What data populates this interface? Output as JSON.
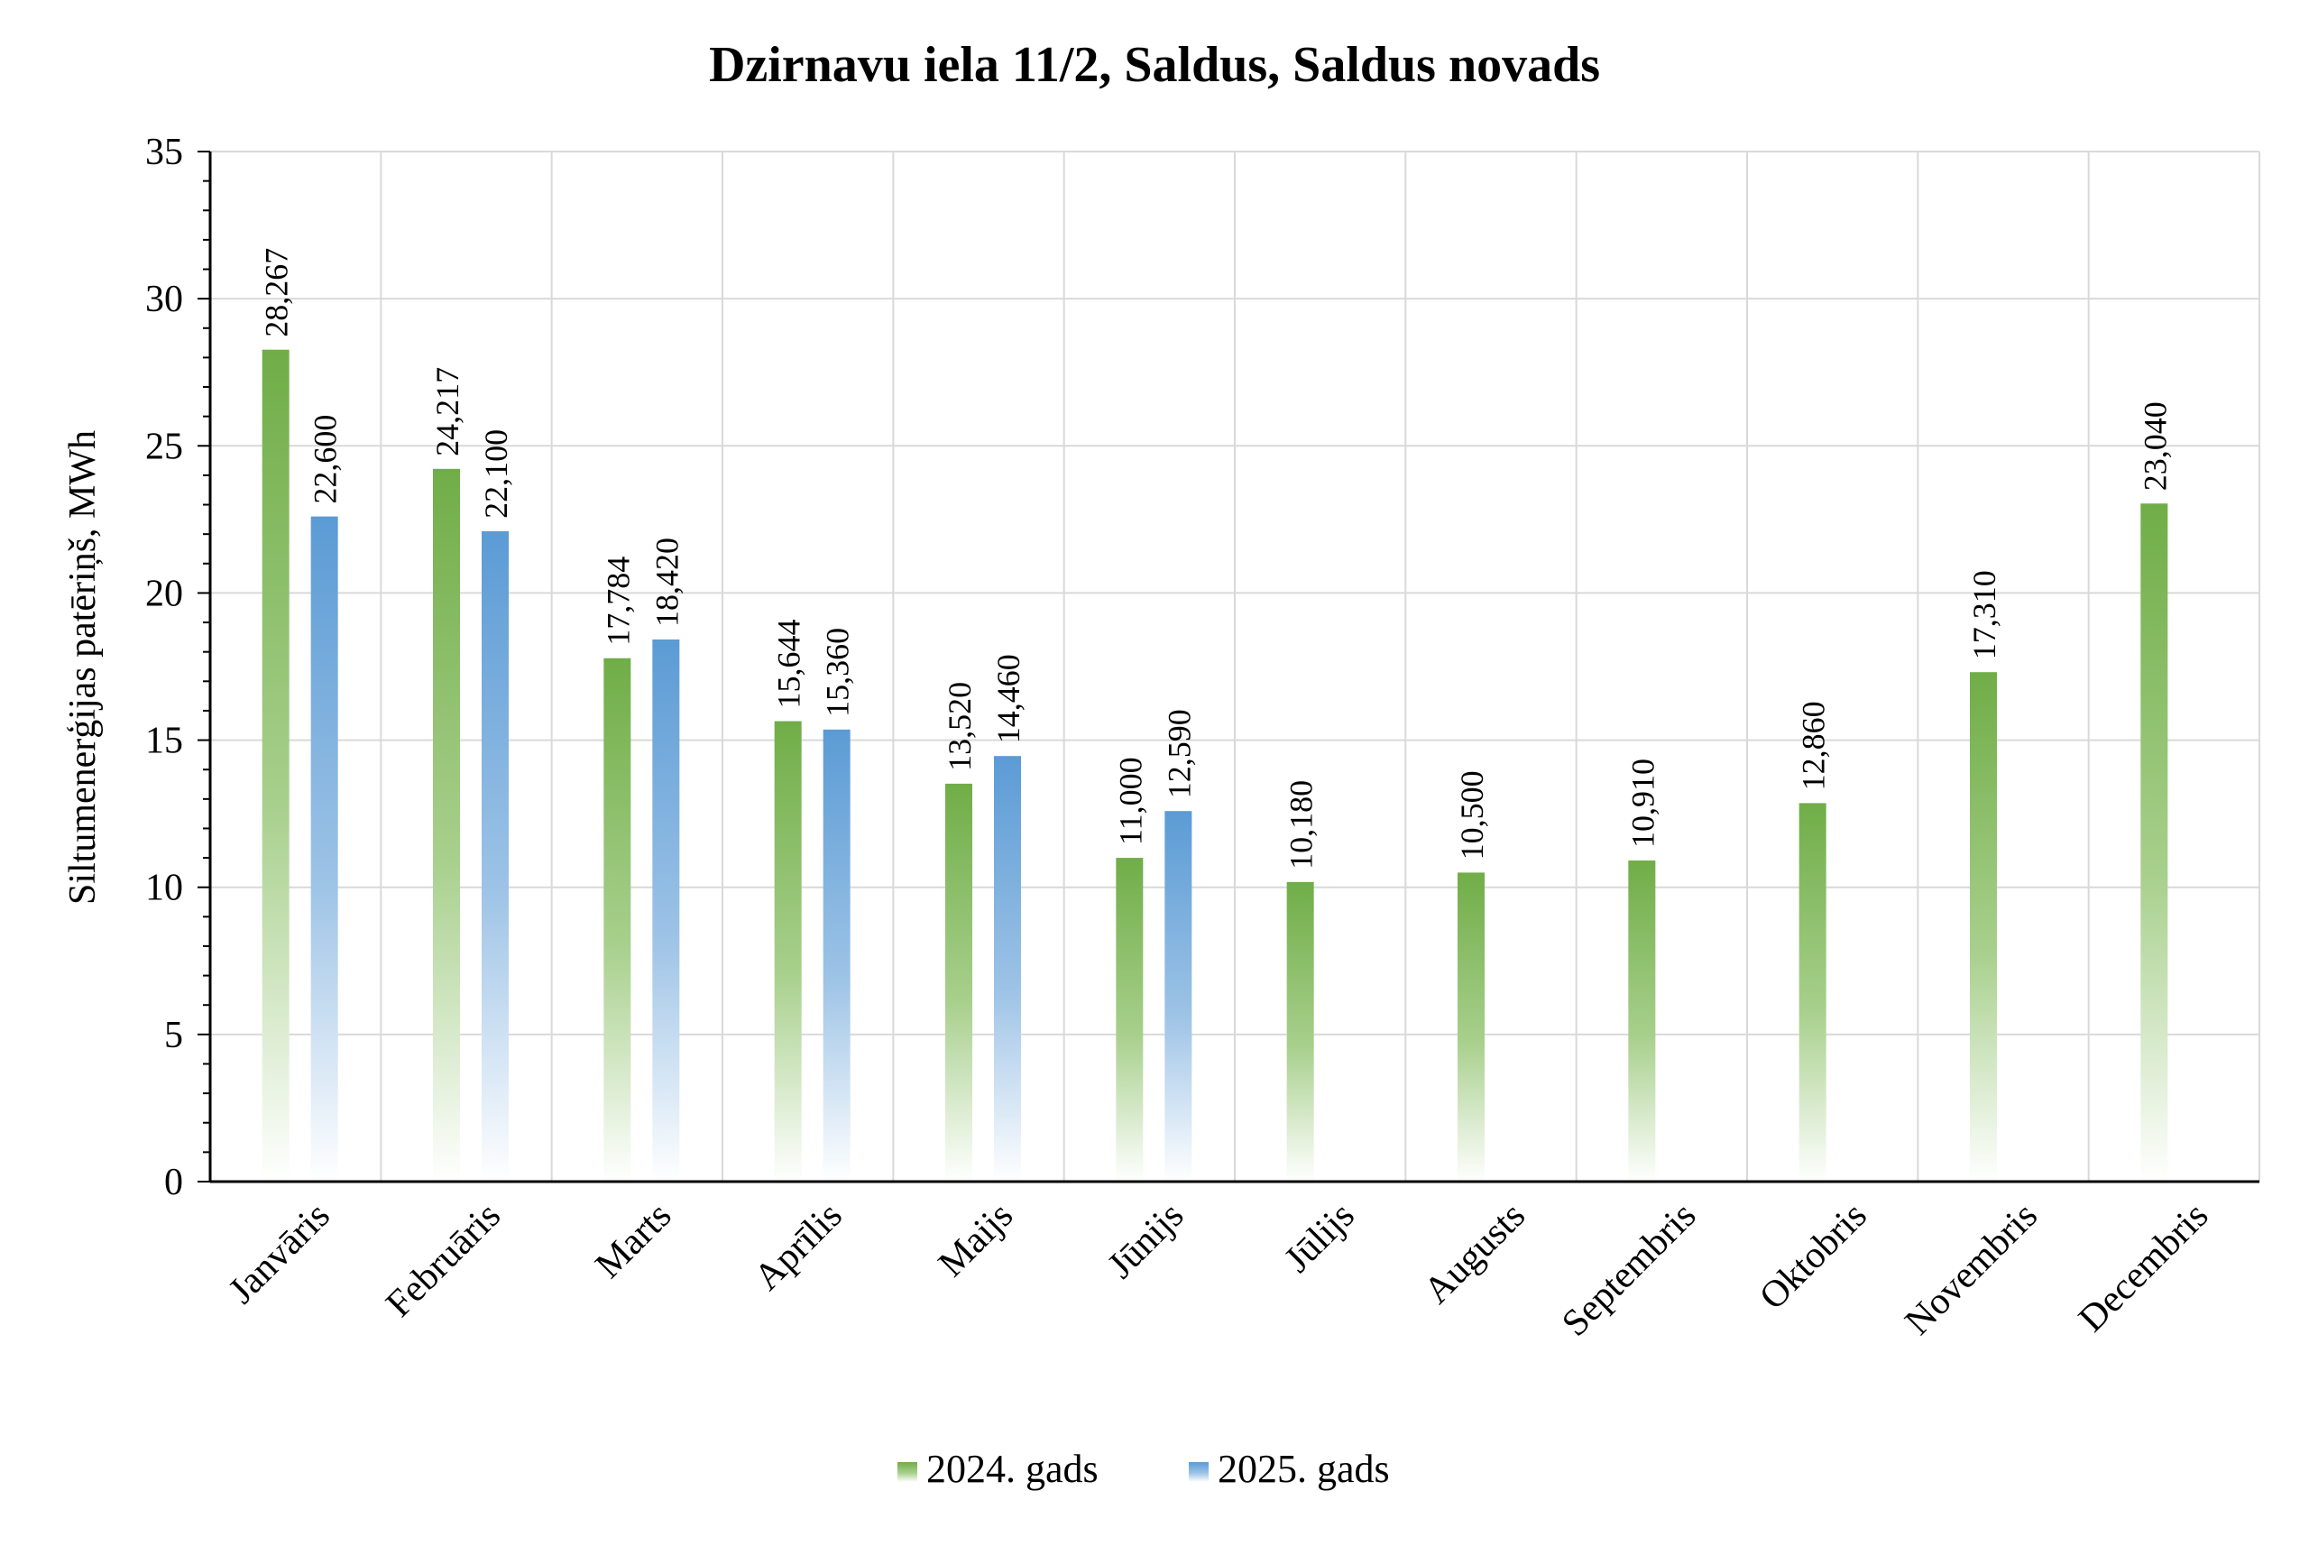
{
  "chart_data": {
    "type": "bar",
    "title": "Dzirnavu iela 11/2, Saldus, Saldus novads",
    "xlabel": "",
    "ylabel": "Siltumenerģijas patēriņš, MWh",
    "ylim": [
      0,
      35
    ],
    "yticks": [
      0,
      5,
      10,
      15,
      20,
      25,
      30,
      35
    ],
    "categories": [
      "Janvāris",
      "Februāris",
      "Marts",
      "Aprīlis",
      "Maijs",
      "Jūnijs",
      "Jūlijs",
      "Augusts",
      "Septembris",
      "Oktobris",
      "Novembris",
      "Decembris"
    ],
    "series": [
      {
        "name": "2024. gads",
        "color": "#70ad47",
        "values": [
          28.267,
          24.217,
          17.784,
          15.644,
          13.52,
          11.0,
          10.18,
          10.5,
          10.91,
          12.86,
          17.31,
          23.04
        ],
        "labels": [
          "28,267",
          "24,217",
          "17,784",
          "15,644",
          "13,520",
          "11,000",
          "10,180",
          "10,500",
          "10,910",
          "12,860",
          "17,310",
          "23,040"
        ]
      },
      {
        "name": "2025. gads",
        "color": "#5b9bd5",
        "values": [
          22.6,
          22.1,
          18.42,
          15.36,
          14.46,
          12.59,
          null,
          null,
          null,
          null,
          null,
          null
        ],
        "labels": [
          "22,600",
          "22,100",
          "18,420",
          "15,360",
          "14,460",
          "12,590",
          "",
          "",
          "",
          "",
          "",
          ""
        ]
      }
    ],
    "grid": true,
    "legend": "bottom"
  }
}
